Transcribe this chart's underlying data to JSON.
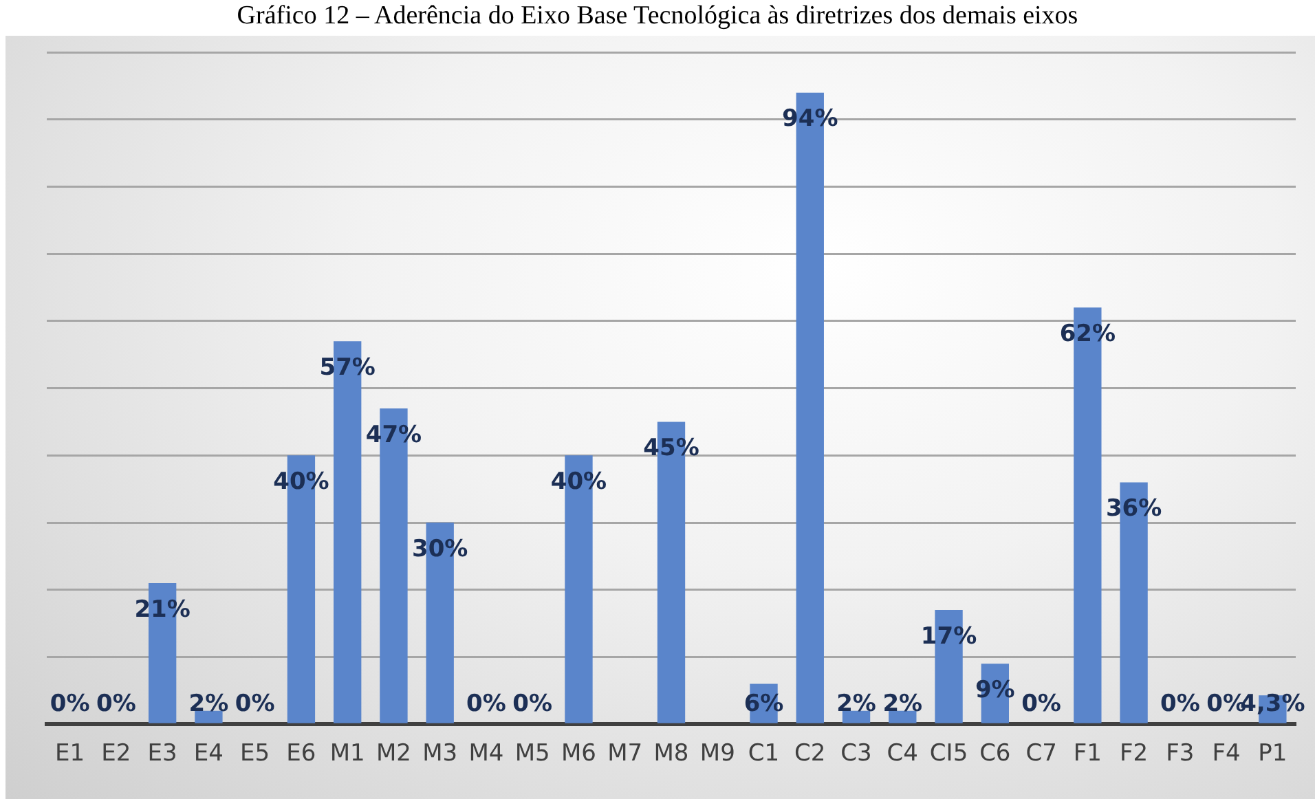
{
  "chart_data": {
    "type": "bar",
    "title": "Gráfico 12 – Aderência do Eixo Base Tecnológica às diretrizes dos demais eixos",
    "categories": [
      "E1",
      "E2",
      "E3",
      "E4",
      "E5",
      "E6",
      "M1",
      "M2",
      "M3",
      "M4",
      "M5",
      "M6",
      "M7",
      "M8",
      "M9",
      "C1",
      "C2",
      "C3",
      "C4",
      "CI5",
      "C6",
      "C7",
      "F1",
      "F2",
      "F3",
      "F4",
      "P1"
    ],
    "values": [
      0,
      0,
      21,
      2,
      0,
      40,
      57,
      47,
      30,
      0,
      0,
      40,
      0,
      45,
      0,
      6,
      94,
      2,
      2,
      17,
      9,
      0,
      62,
      36,
      0,
      0,
      4.3
    ],
    "value_labels": [
      "0%",
      "0%",
      "21%",
      "2%",
      "0%",
      "40%",
      "57%",
      "47%",
      "30%",
      "0%",
      "0%",
      "40%",
      null,
      "45%",
      null,
      "6%",
      "94%",
      "2%",
      "2%",
      "17%",
      "9%",
      "0%",
      "62%",
      "36%",
      "0%",
      "0%",
      "4,3%"
    ],
    "color": "#5a85cb",
    "ylim": [
      0,
      100
    ],
    "grid": "y",
    "tick_labels": "x"
  }
}
